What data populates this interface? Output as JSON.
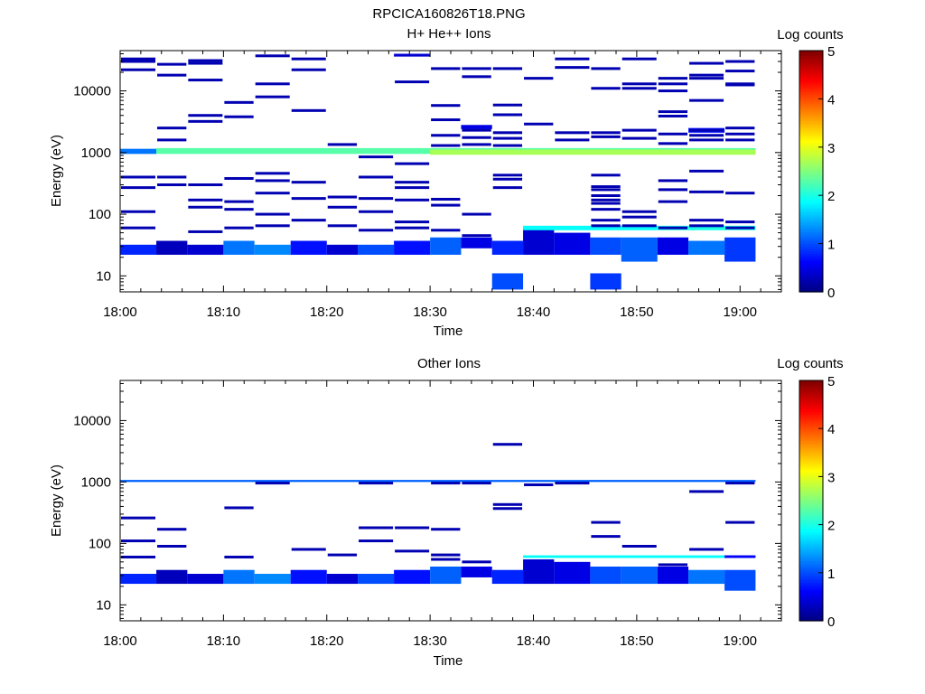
{
  "figure_title": "RPCICA160826T18.PNG",
  "colors": {
    "colormap": [
      "#00007f",
      "#0000ff",
      "#007fff",
      "#00ffff",
      "#7fff7f",
      "#ffff00",
      "#ff7f00",
      "#ff0000",
      "#7f0000"
    ],
    "axis": "#000000",
    "background": "#ffffff"
  },
  "chart_data": [
    {
      "type": "heatmap",
      "title": "H+ He++ Ions",
      "xlabel": "Time",
      "ylabel": "Energy (eV)",
      "xlim": [
        0,
        64
      ],
      "ylim": [
        5.5,
        45000
      ],
      "log_y": true,
      "x_tick_labels": [
        "18:00",
        "18:10",
        "18:20",
        "18:30",
        "18:40",
        "18:50",
        "19:00"
      ],
      "x_tick_values": [
        0,
        10,
        20,
        30,
        40,
        50,
        60
      ],
      "y_tick_labels": [
        "10",
        "100",
        "1000",
        "10000"
      ],
      "y_tick_values": [
        10,
        100,
        1000,
        10000
      ],
      "colorbar": {
        "label": "Log counts",
        "range": [
          0,
          5
        ],
        "tick_labels": [
          "0",
          "1",
          "2",
          "3",
          "4",
          "5"
        ]
      },
      "time_bins_min": [
        0,
        3.5,
        6.5,
        10,
        13,
        16.5,
        20,
        23,
        26.5,
        30,
        33,
        36,
        39,
        42,
        45.5,
        48.5,
        52,
        55,
        58.5,
        61.5
      ],
      "cells": [
        {
          "t": [
            0,
            3.5
          ],
          "e": [
            22,
            32
          ],
          "v": 0.8
        },
        {
          "t": [
            3.5,
            6.5
          ],
          "e": [
            22,
            37
          ],
          "v": 0.3
        },
        {
          "t": [
            6.5,
            10
          ],
          "e": [
            22,
            32
          ],
          "v": 0.4
        },
        {
          "t": [
            10,
            13
          ],
          "e": [
            22,
            37
          ],
          "v": 1.2
        },
        {
          "t": [
            13,
            16.5
          ],
          "e": [
            22,
            32
          ],
          "v": 1.3
        },
        {
          "t": [
            16.5,
            20
          ],
          "e": [
            22,
            37
          ],
          "v": 0.7
        },
        {
          "t": [
            20,
            23
          ],
          "e": [
            22,
            32
          ],
          "v": 0.4
        },
        {
          "t": [
            23,
            26.5
          ],
          "e": [
            22,
            32
          ],
          "v": 1.0
        },
        {
          "t": [
            26.5,
            30
          ],
          "e": [
            22,
            37
          ],
          "v": 0.7
        },
        {
          "t": [
            30,
            33
          ],
          "e": [
            22,
            42
          ],
          "v": 1.1
        },
        {
          "t": [
            33,
            36
          ],
          "e": [
            28,
            42
          ],
          "v": 0.5
        },
        {
          "t": [
            36,
            39
          ],
          "e": [
            22,
            37
          ],
          "v": 0.8
        },
        {
          "t": [
            39,
            42
          ],
          "e": [
            22,
            60
          ],
          "v": 0.4
        },
        {
          "t": [
            42,
            45.5
          ],
          "e": [
            22,
            50
          ],
          "v": 0.5
        },
        {
          "t": [
            45.5,
            48.5
          ],
          "e": [
            22,
            42
          ],
          "v": 1.0
        },
        {
          "t": [
            48.5,
            52
          ],
          "e": [
            17,
            42
          ],
          "v": 1.1
        },
        {
          "t": [
            52,
            55
          ],
          "e": [
            22,
            42
          ],
          "v": 0.5
        },
        {
          "t": [
            55,
            58.5
          ],
          "e": [
            22,
            37
          ],
          "v": 1.2
        },
        {
          "t": [
            58.5,
            61.5
          ],
          "e": [
            17,
            42
          ],
          "v": 0.9
        },
        {
          "t": [
            3.5,
            61.5
          ],
          "e": [
            950,
            1180
          ],
          "v": 2.3
        },
        {
          "t": [
            30,
            61.5
          ],
          "e": [
            920,
            1120
          ],
          "v": 2.7
        },
        {
          "t": [
            0,
            3.5
          ],
          "e": [
            950,
            1150
          ],
          "v": 1.2
        },
        {
          "t": [
            39,
            52
          ],
          "e": [
            55,
            65
          ],
          "v": 1.9
        },
        {
          "t": [
            52,
            61.5
          ],
          "e": [
            55,
            65
          ],
          "v": 2.0
        },
        {
          "t": [
            36,
            39
          ],
          "e": [
            6,
            11
          ],
          "v": 1.0
        },
        {
          "t": [
            45.5,
            48.5
          ],
          "e": [
            6,
            11
          ],
          "v": 0.9
        },
        {
          "t": [
            33,
            36
          ],
          "e": [
            2400,
            2800
          ],
          "v": 0.5
        },
        {
          "t": [
            26.5,
            30
          ],
          "e": [
            36000,
            40000
          ],
          "v": 0.4
        },
        {
          "t": [
            55,
            58.5
          ],
          "e": [
            2100,
            2500
          ],
          "v": 0.7
        }
      ],
      "lines_e": [
        {
          "t": [
            0,
            3.5
          ],
          "e": [
            33000,
            30000,
            22000,
            400,
            270,
            110,
            60
          ]
        },
        {
          "t": [
            3.5,
            6.5
          ],
          "e": [
            27000,
            18000,
            2500,
            1600,
            400,
            300
          ]
        },
        {
          "t": [
            6.5,
            10
          ],
          "e": [
            31000,
            28000,
            15000,
            4000,
            3200,
            300,
            170,
            130,
            52
          ]
        },
        {
          "t": [
            10,
            13
          ],
          "e": [
            6500,
            3800,
            380,
            160,
            120,
            60
          ]
        },
        {
          "t": [
            13,
            16.5
          ],
          "e": [
            37000,
            13000,
            8000,
            460,
            350,
            220,
            100,
            65
          ]
        },
        {
          "t": [
            16.5,
            20
          ],
          "e": [
            33000,
            22000,
            4800,
            80,
            330,
            180
          ]
        },
        {
          "t": [
            20,
            23
          ],
          "e": [
            1350,
            190,
            130,
            65
          ]
        },
        {
          "t": [
            23,
            26.5
          ],
          "e": [
            850,
            400,
            180,
            110,
            55
          ]
        },
        {
          "t": [
            26.5,
            30
          ],
          "e": [
            14000,
            660,
            330,
            270,
            170,
            75,
            60
          ]
        },
        {
          "t": [
            30,
            33
          ],
          "e": [
            23000,
            5800,
            3400,
            1900,
            1300,
            175,
            140,
            55
          ]
        },
        {
          "t": [
            33,
            36
          ],
          "e": [
            23000,
            17000,
            2300,
            1750,
            1350,
            100,
            45
          ]
        },
        {
          "t": [
            36,
            39
          ],
          "e": [
            23000,
            5900,
            4100,
            2100,
            1700,
            1300,
            430,
            370,
            270
          ]
        },
        {
          "t": [
            39,
            42
          ],
          "e": [
            16000,
            2900
          ]
        },
        {
          "t": [
            42,
            45.5
          ],
          "e": [
            33000,
            24000,
            2100,
            1600
          ]
        },
        {
          "t": [
            45.5,
            48.5
          ],
          "e": [
            23000,
            11000,
            2100,
            1800,
            430,
            280,
            250,
            200,
            170,
            150,
            120,
            80,
            65
          ]
        },
        {
          "t": [
            48.5,
            52
          ],
          "e": [
            33000,
            13000,
            11000,
            2300,
            1700,
            110,
            90,
            65
          ]
        },
        {
          "t": [
            52,
            55
          ],
          "e": [
            16000,
            13000,
            10000,
            4600,
            3900,
            2000,
            1400,
            350,
            250,
            160,
            60
          ]
        },
        {
          "t": [
            55,
            58.5
          ],
          "e": [
            28000,
            18000,
            16000,
            7000,
            2300,
            1900,
            1600,
            500,
            230,
            80,
            65
          ]
        },
        {
          "t": [
            58.5,
            61.5
          ],
          "e": [
            30000,
            21000,
            13000,
            12500,
            2500,
            2000,
            1600,
            220,
            75,
            60
          ]
        }
      ]
    },
    {
      "type": "heatmap",
      "title": "Other Ions",
      "xlabel": "Time",
      "ylabel": "Energy (eV)",
      "xlim": [
        0,
        64
      ],
      "ylim": [
        5.5,
        45000
      ],
      "log_y": true,
      "x_tick_labels": [
        "18:00",
        "18:10",
        "18:20",
        "18:30",
        "18:40",
        "18:50",
        "19:00"
      ],
      "x_tick_values": [
        0,
        10,
        20,
        30,
        40,
        50,
        60
      ],
      "y_tick_labels": [
        "10",
        "100",
        "1000",
        "10000"
      ],
      "y_tick_values": [
        10,
        100,
        1000,
        10000
      ],
      "colorbar": {
        "label": "Log counts",
        "range": [
          0,
          5
        ],
        "tick_labels": [
          "0",
          "1",
          "2",
          "3",
          "4",
          "5"
        ]
      },
      "cells": [
        {
          "t": [
            0,
            3.5
          ],
          "e": [
            22,
            32
          ],
          "v": 0.8
        },
        {
          "t": [
            3.5,
            6.5
          ],
          "e": [
            22,
            37
          ],
          "v": 0.3
        },
        {
          "t": [
            6.5,
            10
          ],
          "e": [
            22,
            32
          ],
          "v": 0.4
        },
        {
          "t": [
            10,
            13
          ],
          "e": [
            22,
            37
          ],
          "v": 1.2
        },
        {
          "t": [
            13,
            16.5
          ],
          "e": [
            22,
            32
          ],
          "v": 1.3
        },
        {
          "t": [
            16.5,
            20
          ],
          "e": [
            22,
            37
          ],
          "v": 0.7
        },
        {
          "t": [
            20,
            23
          ],
          "e": [
            22,
            32
          ],
          "v": 0.4
        },
        {
          "t": [
            23,
            26.5
          ],
          "e": [
            22,
            32
          ],
          "v": 1.0
        },
        {
          "t": [
            26.5,
            30
          ],
          "e": [
            22,
            37
          ],
          "v": 0.7
        },
        {
          "t": [
            30,
            33
          ],
          "e": [
            22,
            42
          ],
          "v": 1.1
        },
        {
          "t": [
            33,
            36
          ],
          "e": [
            28,
            42
          ],
          "v": 0.5
        },
        {
          "t": [
            36,
            39
          ],
          "e": [
            22,
            37
          ],
          "v": 0.8
        },
        {
          "t": [
            39,
            42
          ],
          "e": [
            22,
            55
          ],
          "v": 0.4
        },
        {
          "t": [
            42,
            45.5
          ],
          "e": [
            22,
            50
          ],
          "v": 0.5
        },
        {
          "t": [
            45.5,
            48.5
          ],
          "e": [
            22,
            42
          ],
          "v": 1.0
        },
        {
          "t": [
            48.5,
            52
          ],
          "e": [
            22,
            42
          ],
          "v": 1.1
        },
        {
          "t": [
            52,
            55
          ],
          "e": [
            22,
            42
          ],
          "v": 0.5
        },
        {
          "t": [
            55,
            58.5
          ],
          "e": [
            22,
            37
          ],
          "v": 1.2
        },
        {
          "t": [
            58.5,
            61.5
          ],
          "e": [
            17,
            37
          ],
          "v": 1.0
        },
        {
          "t": [
            0,
            61.5
          ],
          "e": [
            1000,
            1080
          ],
          "v": 1.1
        },
        {
          "t": [
            39,
            58.5
          ],
          "e": [
            58,
            64
          ],
          "v": 1.9
        },
        {
          "t": [
            58.5,
            61.5
          ],
          "e": [
            58,
            64
          ],
          "v": 0.6
        }
      ],
      "lines_e": [
        {
          "t": [
            0,
            3.5
          ],
          "e": [
            260,
            110,
            60
          ]
        },
        {
          "t": [
            3.5,
            6.5
          ],
          "e": [
            170,
            90
          ]
        },
        {
          "t": [
            10,
            13
          ],
          "e": [
            380,
            60
          ]
        },
        {
          "t": [
            13,
            16.5
          ],
          "e": [
            960
          ]
        },
        {
          "t": [
            16.5,
            20
          ],
          "e": [
            80
          ]
        },
        {
          "t": [
            20,
            23
          ],
          "e": [
            65
          ]
        },
        {
          "t": [
            23,
            26.5
          ],
          "e": [
            960,
            180,
            110
          ]
        },
        {
          "t": [
            26.5,
            30
          ],
          "e": [
            180,
            75
          ]
        },
        {
          "t": [
            30,
            33
          ],
          "e": [
            960,
            170,
            65,
            55
          ]
        },
        {
          "t": [
            33,
            36
          ],
          "e": [
            960,
            50
          ]
        },
        {
          "t": [
            36,
            39
          ],
          "e": [
            4100,
            430,
            370
          ]
        },
        {
          "t": [
            39,
            42
          ],
          "e": [
            900
          ]
        },
        {
          "t": [
            42,
            45.5
          ],
          "e": [
            960
          ]
        },
        {
          "t": [
            45.5,
            48.5
          ],
          "e": [
            220,
            130
          ]
        },
        {
          "t": [
            48.5,
            52
          ],
          "e": [
            90
          ]
        },
        {
          "t": [
            52,
            55
          ],
          "e": [
            45
          ]
        },
        {
          "t": [
            55,
            58.5
          ],
          "e": [
            700,
            80
          ]
        },
        {
          "t": [
            58.5,
            61.5
          ],
          "e": [
            960,
            220
          ]
        }
      ]
    }
  ]
}
